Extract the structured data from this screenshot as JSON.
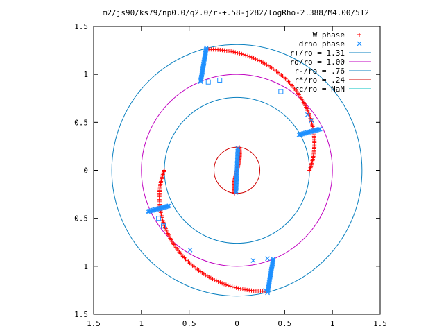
{
  "chart_data": {
    "type": "scatter",
    "title": "m2/js90/ks79/np0.0/q2.0/r-+.58-j282/logRho-2.388/M4.00/512",
    "xlabel": "",
    "ylabel": "",
    "xlim": [
      -1.5,
      1.5
    ],
    "ylim": [
      -1.5,
      1.5
    ],
    "grid": false,
    "legend_position": "top-right",
    "x_tick_labels": [
      "1.5",
      "1",
      "0.5",
      "0",
      "0.5",
      "1",
      "1.5"
    ],
    "y_tick_labels": [
      "1.5",
      "1",
      "0.5",
      "0",
      "0.5",
      "1",
      "1.5"
    ],
    "tick_values": [
      -1.5,
      -1,
      -0.5,
      0,
      0.5,
      1,
      1.5
    ],
    "circles": [
      {
        "name": "r+/ro = 1.31",
        "radius": 1.31,
        "color": "#0a80c0"
      },
      {
        "name": "ro/ro = 1.00",
        "radius": 1.0,
        "color": "#c000c0"
      },
      {
        "name": "r-/ro = .76",
        "radius": 0.76,
        "color": "#0a80c0"
      },
      {
        "name": "r*/ro = .24",
        "radius": 0.24,
        "color": "#d00000"
      },
      {
        "name": "rc/ro = NaN",
        "radius": null,
        "color": "#00c0c0"
      }
    ],
    "series": [
      {
        "name": "W phase",
        "marker": "plus",
        "color": "#ff0000"
      },
      {
        "name": "drho phase",
        "marker": "x",
        "color": "#1e90ff"
      }
    ],
    "scattered_square_points": [
      [
        -0.3,
        0.92
      ],
      [
        -0.18,
        0.94
      ],
      [
        0.46,
        0.82
      ],
      [
        -0.82,
        -0.5
      ],
      [
        -0.77,
        -0.58
      ]
    ],
    "scattered_x_points": [
      [
        0.74,
        0.58
      ],
      [
        0.78,
        0.52
      ],
      [
        -0.49,
        -0.83
      ],
      [
        0.17,
        -0.94
      ],
      [
        0.32,
        -0.92
      ],
      [
        0.3,
        -1.25
      ]
    ]
  }
}
